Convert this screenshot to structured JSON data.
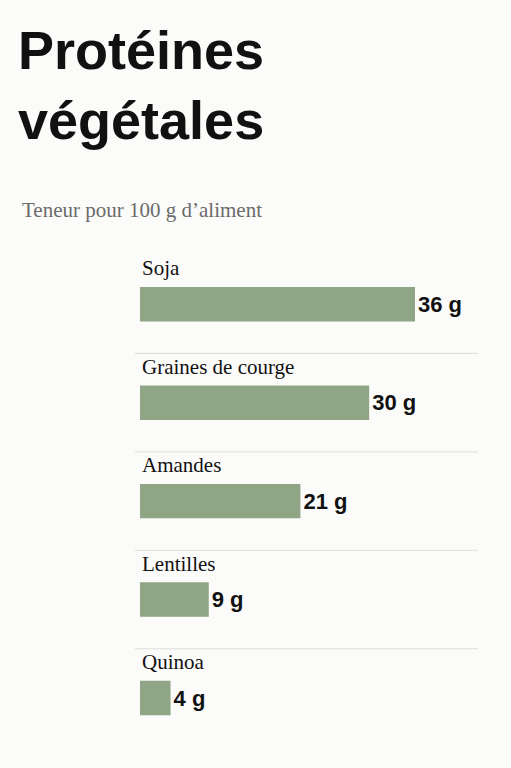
{
  "chart_data": {
    "type": "bar",
    "title": "Protéines végétales",
    "subtitle": "Teneur pour 100 g d’aliment",
    "orientation": "horizontal",
    "categories": [
      "Soja",
      "Graines de courge",
      "Amandes",
      "Lentilles",
      "Quinoa"
    ],
    "values": [
      36,
      30,
      21,
      9,
      4
    ],
    "value_labels": [
      "36 g",
      "30 g",
      "21 g",
      "9 g",
      "4 g"
    ],
    "color": "#8fa585",
    "xlim": [
      0,
      36
    ],
    "data_labels": true,
    "tick_labels": false,
    "grid": false
  }
}
